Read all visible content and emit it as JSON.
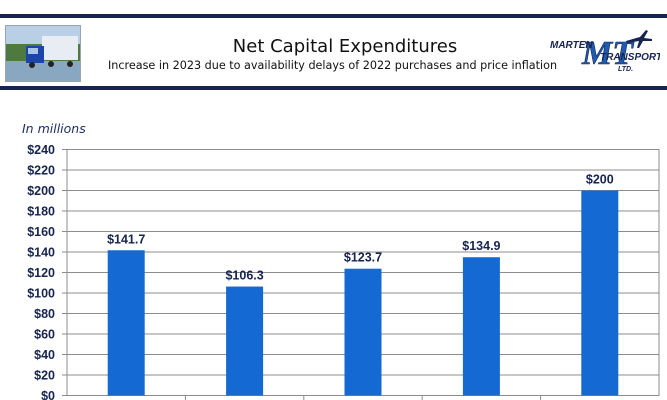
{
  "header": {
    "title": "Net Capital Expenditures",
    "subtitle": "Increase in 2023 due to availability delays of 2022 purchases and price inflation",
    "logo": {
      "line1": "MARTEN",
      "line2": "TRANSPORT",
      "line3": "LTD.",
      "monogram": "MT",
      "icon": "airplane-icon"
    },
    "photo_icon": "truck-photo"
  },
  "chart_data": {
    "type": "bar",
    "unit_label": "In millions",
    "values": [
      141.7,
      106.3,
      123.7,
      134.9,
      200
    ],
    "value_labels": [
      "$141.7",
      "$106.3",
      "$123.7",
      "$134.9",
      "$200"
    ],
    "ylim": [
      0,
      240
    ],
    "yticks": [
      0,
      20,
      40,
      60,
      80,
      100,
      120,
      140,
      160,
      180,
      200,
      220,
      240
    ],
    "ytick_labels": [
      "$0",
      "$20",
      "$40",
      "$60",
      "$80",
      "$100",
      "$120",
      "$140",
      "$160",
      "$180",
      "$200",
      "$220",
      "$240"
    ],
    "grid": true,
    "bar_color": "#1569d3",
    "label_color": "#16244f"
  }
}
